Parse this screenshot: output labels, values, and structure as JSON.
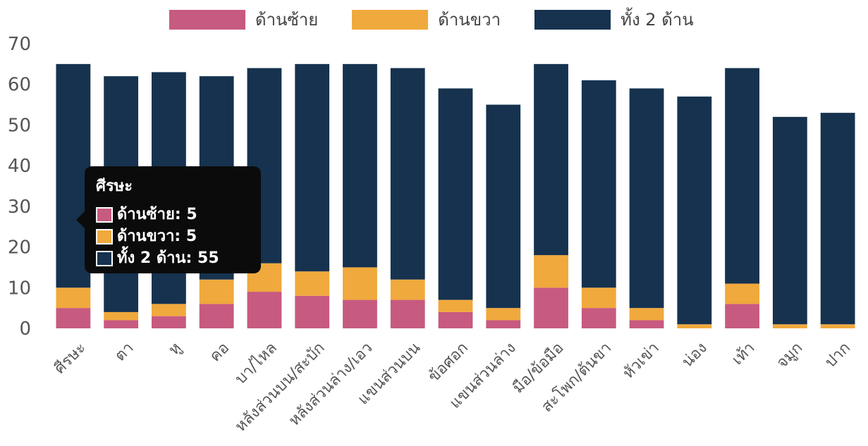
{
  "chart_data": {
    "type": "bar",
    "stacked": true,
    "categories": [
      "ศีรษะ",
      "ตา",
      "หู",
      "คอ",
      "บา/ไหล",
      "หลังส่วนบน/สะบัก",
      "หลังส่วนล่าง/เอว",
      "แขนส่วนบน",
      "ข้อศอก",
      "แขนส่วนล่าง",
      "มือ/ข้อมือ",
      "สะโพก/ต้นขา",
      "หัวเข่า",
      "น่อง",
      "เท้า",
      "จมูก",
      "ปาก"
    ],
    "series": [
      {
        "name": "ด้านซ้าย",
        "color": "#c75a80",
        "values": [
          5,
          2,
          3,
          6,
          9,
          8,
          7,
          7,
          4,
          2,
          10,
          5,
          2,
          0,
          6,
          0,
          0
        ]
      },
      {
        "name": "ด้านขวา",
        "color": "#f0a93c",
        "values": [
          5,
          2,
          3,
          6,
          7,
          6,
          8,
          5,
          3,
          3,
          8,
          5,
          3,
          1,
          5,
          1,
          1
        ]
      },
      {
        "name": "ทั้ง 2 ด้าน",
        "color": "#16324f",
        "values": [
          55,
          58,
          57,
          50,
          48,
          51,
          50,
          52,
          52,
          50,
          47,
          51,
          54,
          56,
          53,
          51,
          52
        ]
      }
    ],
    "ylim": [
      0,
      70
    ],
    "yticks": [
      0,
      10,
      20,
      30,
      40,
      50,
      60,
      70
    ],
    "grid": false,
    "legend": "top-center",
    "tooltip": {
      "title": "ศีรษะ",
      "rows": [
        {
          "label": "ด้านซ้าย: 5",
          "color": "#c75a80"
        },
        {
          "label": "ด้านขวา: 5",
          "color": "#f0a93c"
        },
        {
          "label": "ทั้ง 2 ด้าน: 55",
          "color": "#16324f"
        }
      ]
    }
  }
}
